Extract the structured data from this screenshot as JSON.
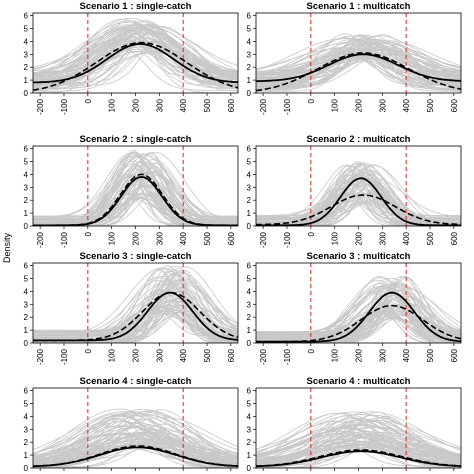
{
  "figure": {
    "ylabel": "Density"
  },
  "chart_data": [
    {
      "type": "line",
      "title": "Scenario  1 : single-catch",
      "xlim": [
        -230,
        630
      ],
      "ylim": [
        0,
        6.2
      ],
      "xticks": [
        -200,
        -100,
        0,
        100,
        200,
        300,
        400,
        500,
        600
      ],
      "yticks": [
        0,
        1,
        2,
        3,
        4,
        5,
        6
      ],
      "xtick_labels_visible": true,
      "vlines": [
        0,
        400
      ],
      "curves": {
        "true": {
          "mu": 220,
          "sigma": 140,
          "peak": 3.8,
          "floor": 0.8
        },
        "estimate": {
          "mu": 225,
          "sigma": 190,
          "peak": 3.9,
          "floor": 0.0
        },
        "sim_band": {
          "lo": 1.8,
          "hi": 5.8
        }
      }
    },
    {
      "type": "line",
      "title": "Scenario  1 : multicatch",
      "xlim": [
        -230,
        630
      ],
      "ylim": [
        0,
        6.2
      ],
      "xticks": [
        -200,
        -100,
        0,
        100,
        200,
        300,
        400,
        500,
        600
      ],
      "yticks": [
        0,
        1,
        2,
        3,
        4,
        5,
        6
      ],
      "xtick_labels_visible": true,
      "vlines": [
        0,
        400
      ],
      "curves": {
        "true": {
          "mu": 220,
          "sigma": 145,
          "peak": 3.0,
          "floor": 0.9
        },
        "estimate": {
          "mu": 220,
          "sigma": 190,
          "peak": 3.1,
          "floor": 0.0
        },
        "sim_band": {
          "lo": 1.6,
          "hi": 4.6
        }
      }
    },
    {
      "type": "line",
      "title": "Scenario  2 : single-catch",
      "xlim": [
        -230,
        630
      ],
      "ylim": [
        0,
        6.2
      ],
      "xticks": [
        -200,
        -100,
        0,
        100,
        200,
        300,
        400,
        500,
        600
      ],
      "yticks": [
        0,
        1,
        2,
        3,
        4,
        5,
        6
      ],
      "xtick_labels_visible": true,
      "vlines": [
        0,
        400
      ],
      "curves": {
        "true": {
          "mu": 225,
          "sigma": 85,
          "peak": 3.8,
          "floor": 0.05
        },
        "estimate": {
          "mu": 225,
          "sigma": 88,
          "peak": 4.0,
          "floor": 0.05
        },
        "sim_band": {
          "lo": 0.0,
          "hi": 6.0
        }
      }
    },
    {
      "type": "line",
      "title": "Scenario  2 : multicatch",
      "xlim": [
        -230,
        630
      ],
      "ylim": [
        0,
        6.2
      ],
      "xticks": [
        -200,
        -100,
        0,
        100,
        200,
        300,
        400,
        500,
        600
      ],
      "yticks": [
        0,
        1,
        2,
        3,
        4,
        5,
        6
      ],
      "xtick_labels_visible": true,
      "vlines": [
        0,
        400
      ],
      "curves": {
        "true": {
          "mu": 210,
          "sigma": 85,
          "peak": 3.7,
          "floor": 0.05
        },
        "estimate": {
          "mu": 220,
          "sigma": 135,
          "peak": 2.4,
          "floor": 0.1
        },
        "sim_band": {
          "lo": 0.1,
          "hi": 5.0
        }
      }
    },
    {
      "type": "line",
      "title": "Scenario  3 : single-catch",
      "xlim": [
        -230,
        630
      ],
      "ylim": [
        0,
        6.2
      ],
      "xticks": [
        -200,
        -100,
        0,
        100,
        200,
        300,
        400,
        500,
        600
      ],
      "yticks": [
        0,
        1,
        2,
        3,
        4,
        5,
        6
      ],
      "xtick_labels_visible": true,
      "vlines": [
        0,
        400
      ],
      "curves": {
        "true": {
          "mu": 345,
          "sigma": 95,
          "peak": 3.9,
          "floor": 0.2
        },
        "estimate": {
          "mu": 350,
          "sigma": 120,
          "peak": 3.9,
          "floor": 0.2
        },
        "sim_band": {
          "lo": 0.2,
          "hi": 6.0
        }
      }
    },
    {
      "type": "line",
      "title": "Scenario  3 : multicatch",
      "xlim": [
        -230,
        630
      ],
      "ylim": [
        0,
        6.2
      ],
      "xticks": [
        -200,
        -100,
        0,
        100,
        200,
        300,
        400,
        500,
        600
      ],
      "yticks": [
        0,
        1,
        2,
        3,
        4,
        5,
        6
      ],
      "xtick_labels_visible": true,
      "vlines": [
        0,
        400
      ],
      "curves": {
        "true": {
          "mu": 340,
          "sigma": 95,
          "peak": 3.9,
          "floor": 0.1
        },
        "estimate": {
          "mu": 340,
          "sigma": 130,
          "peak": 2.9,
          "floor": 0.1
        },
        "sim_band": {
          "lo": 0.1,
          "hi": 5.2
        }
      }
    },
    {
      "type": "line",
      "title": "Scenario  4 : single-catch",
      "xlim": [
        -230,
        630
      ],
      "ylim": [
        0,
        6.2
      ],
      "xticks": [
        -200,
        -100,
        0,
        100,
        200,
        300,
        400,
        500,
        600
      ],
      "yticks": [
        0,
        1,
        2,
        3,
        4,
        5,
        6
      ],
      "xtick_labels_visible": false,
      "vlines": [
        0,
        400
      ],
      "curves": {
        "true": {
          "mu": 210,
          "sigma": 160,
          "peak": 1.6,
          "floor": 0.1
        },
        "estimate": {
          "mu": 210,
          "sigma": 160,
          "peak": 1.7,
          "floor": 0.1
        },
        "sim_band": {
          "lo": 0.1,
          "hi": 4.6
        }
      }
    },
    {
      "type": "line",
      "title": "Scenario  4 : multicatch",
      "xlim": [
        -230,
        630
      ],
      "ylim": [
        0,
        6.2
      ],
      "xticks": [
        -200,
        -100,
        0,
        100,
        200,
        300,
        400,
        500,
        600
      ],
      "yticks": [
        0,
        1,
        2,
        3,
        4,
        5,
        6
      ],
      "xtick_labels_visible": false,
      "vlines": [
        0,
        400
      ],
      "curves": {
        "true": {
          "mu": 210,
          "sigma": 165,
          "peak": 1.3,
          "floor": 0.1
        },
        "estimate": {
          "mu": 210,
          "sigma": 170,
          "peak": 1.4,
          "floor": 0.1
        },
        "sim_band": {
          "lo": 0.1,
          "hi": 4.4
        }
      }
    }
  ],
  "colors": {
    "sim_band": "#c8c8c8",
    "curve": "#000000",
    "vline": "#e0201b"
  }
}
